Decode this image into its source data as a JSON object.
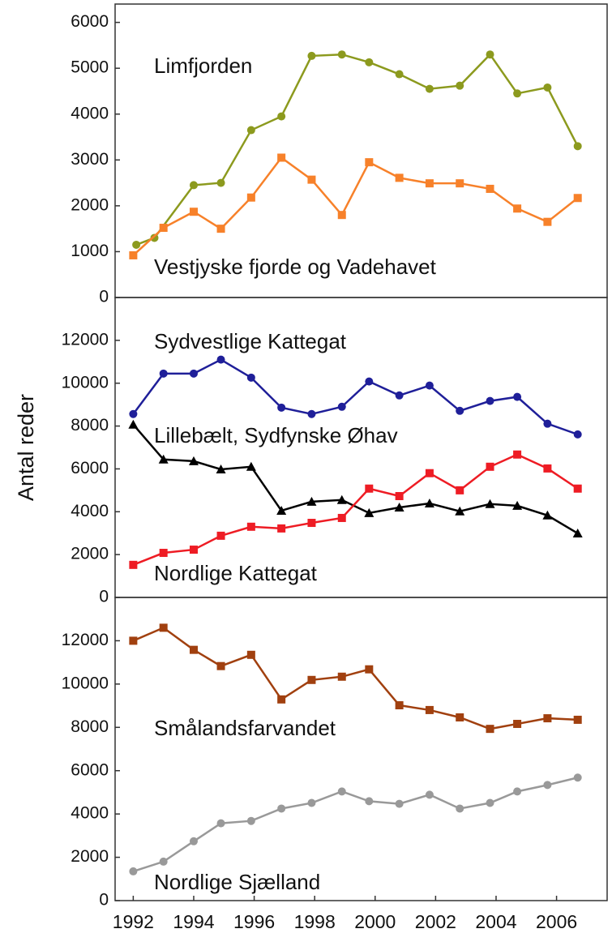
{
  "chart_data": [
    {
      "type": "line",
      "ylim": [
        0,
        6400
      ],
      "yticks": [
        0,
        1000,
        2000,
        3000,
        4000,
        5000,
        6000
      ],
      "xlim": [
        1991.4,
        2007.7
      ],
      "x": [
        1992,
        1993,
        1994,
        1994.9,
        1995.9,
        1996.9,
        1997.9,
        1998.9,
        1999.8,
        2000.8,
        2001.8,
        2002.8,
        2003.8,
        2004.7,
        2005.7,
        2006.7
      ],
      "series": [
        {
          "name": "Limfjorden",
          "color": "#8c9a1e",
          "marker": "circle",
          "x": [
            1992.1,
            1992.7,
            1994,
            1994.9,
            1995.9,
            1996.9,
            1997.9,
            1998.9,
            1999.8,
            2000.8,
            2001.8,
            2002.8,
            2003.8,
            2004.7,
            2005.7,
            2006.7
          ],
          "values": [
            1150,
            1300,
            2450,
            2500,
            3650,
            3950,
            5270,
            5300,
            5130,
            4870,
            4550,
            4620,
            5300,
            4450,
            4580,
            3300
          ]
        },
        {
          "name": "Vestjyske fjorde og Vadehavet",
          "color": "#f7812a",
          "marker": "square",
          "values": [
            920,
            1520,
            1870,
            1500,
            2180,
            3050,
            2570,
            1800,
            2950,
            2610,
            2490,
            2490,
            2370,
            1940,
            1650,
            2170
          ]
        }
      ]
    },
    {
      "type": "line",
      "ylim": [
        0,
        14000
      ],
      "yticks": [
        0,
        2000,
        4000,
        6000,
        8000,
        10000,
        12000
      ],
      "xlim": [
        1991.4,
        2007.7
      ],
      "ylabel": "Antal reder",
      "x": [
        1992,
        1993,
        1994,
        1994.9,
        1995.9,
        1996.9,
        1997.9,
        1998.9,
        1999.8,
        2000.8,
        2001.8,
        2002.8,
        2003.8,
        2004.7,
        2005.7,
        2006.7
      ],
      "series": [
        {
          "name": "Sydvestlige Kattegat",
          "color": "#1f1f99",
          "marker": "circle",
          "values": [
            8560,
            10450,
            10450,
            11100,
            10260,
            8860,
            8560,
            8900,
            10080,
            9430,
            9890,
            8710,
            9170,
            9360,
            8110,
            7610
          ]
        },
        {
          "name": "Lillebælt, Sydfynske Øhav",
          "color": "#000000",
          "marker": "triangle",
          "values": [
            8070,
            6440,
            6360,
            5980,
            6100,
            4050,
            4470,
            4550,
            3940,
            4200,
            4390,
            4020,
            4360,
            4280,
            3830,
            2990
          ]
        },
        {
          "name": "Nordlige Kattegat",
          "color": "#ee1c24",
          "marker": "square",
          "values": [
            1520,
            2080,
            2230,
            2880,
            3300,
            3220,
            3480,
            3710,
            5080,
            4730,
            5800,
            5000,
            6100,
            6670,
            6020,
            5080
          ]
        }
      ]
    },
    {
      "type": "line",
      "ylim": [
        0,
        14000
      ],
      "yticks": [
        0,
        2000,
        4000,
        6000,
        8000,
        10000,
        12000
      ],
      "xlim": [
        1991.4,
        2007.7
      ],
      "xticks": [
        1992,
        1994,
        1996,
        1998,
        2000,
        2002,
        2004,
        2006
      ],
      "x": [
        1992,
        1993,
        1994,
        1994.9,
        1995.9,
        1996.9,
        1997.9,
        1998.9,
        1999.8,
        2000.8,
        2001.8,
        2002.8,
        2003.8,
        2004.7,
        2005.7,
        2006.7
      ],
      "series": [
        {
          "name": "Smålandsfarvandet",
          "color": "#a1400f",
          "marker": "square",
          "values": [
            12000,
            12600,
            11580,
            10830,
            11350,
            9290,
            10190,
            10340,
            10680,
            9020,
            8800,
            8460,
            7930,
            8160,
            8420,
            8350
          ]
        },
        {
          "name": "Nordlige Sjælland",
          "color": "#999999",
          "marker": "circle",
          "values": [
            1350,
            1800,
            2740,
            3570,
            3680,
            4250,
            4510,
            5040,
            4590,
            4470,
            4890,
            4250,
            4510,
            5040,
            5340,
            5680
          ]
        }
      ]
    }
  ]
}
